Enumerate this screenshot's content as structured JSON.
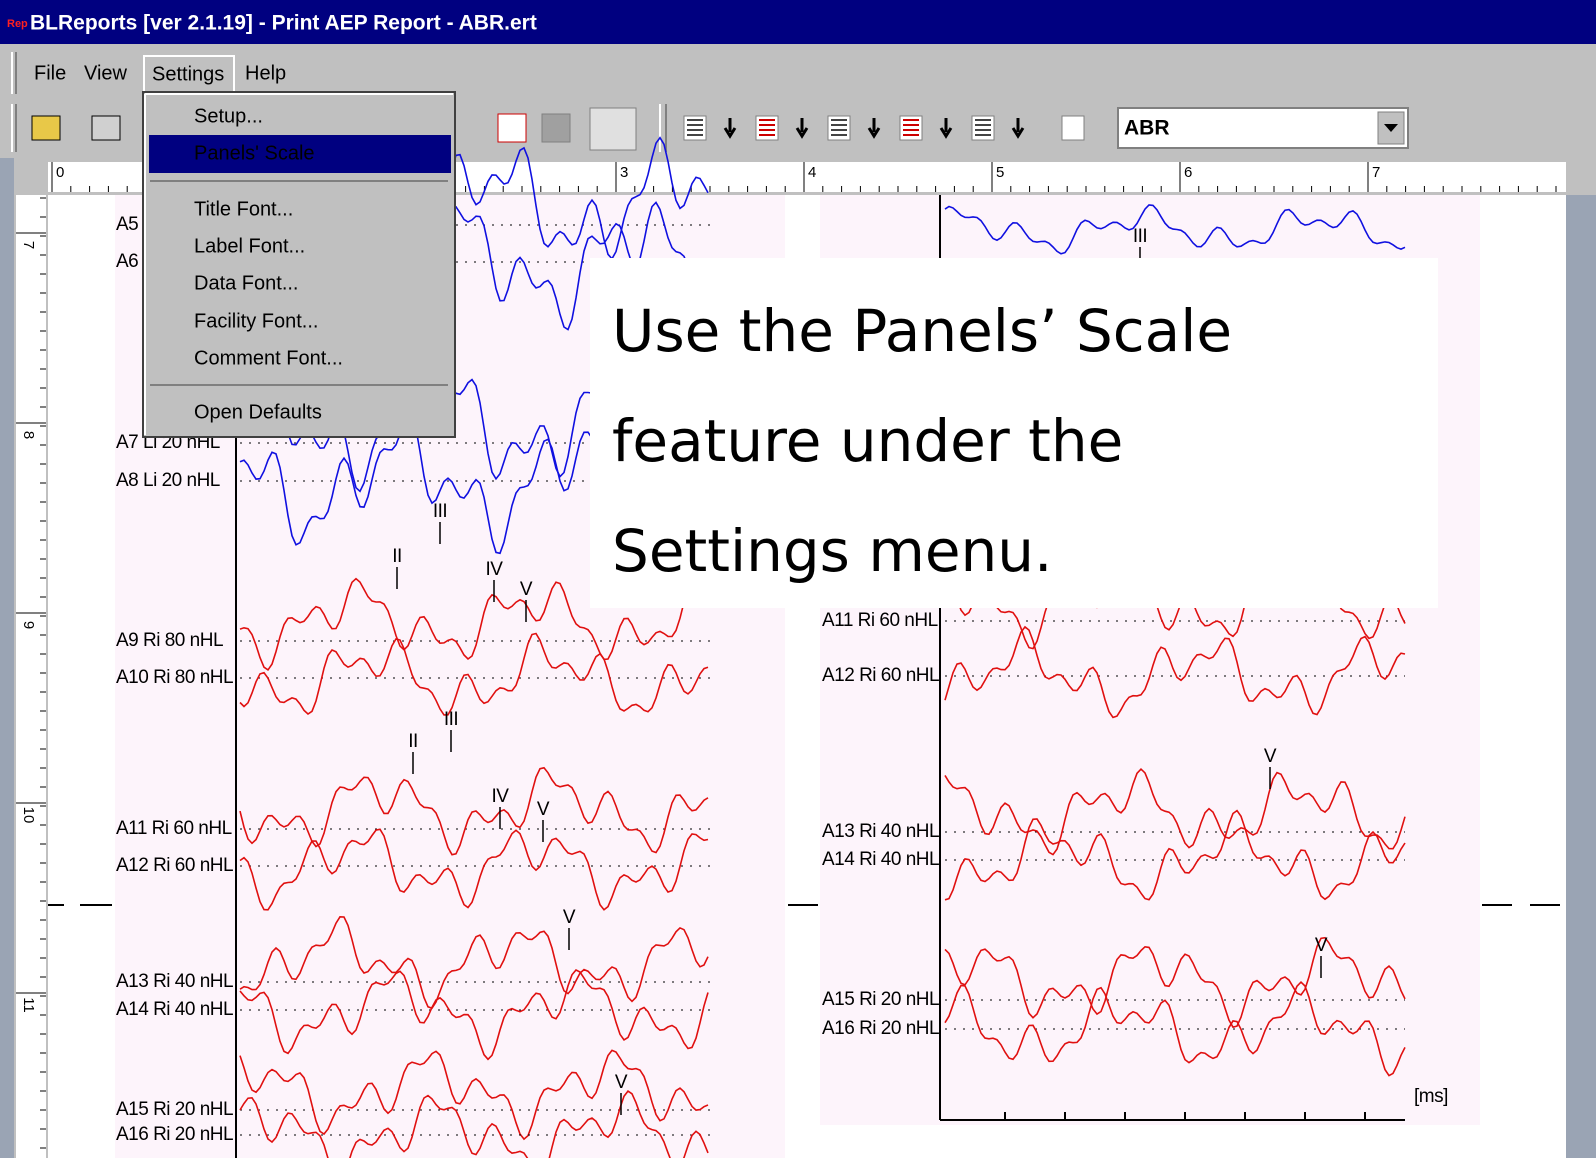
{
  "window_title": "BLReports [ver 2.1.19] - Print AEP Report - ABR.ert",
  "app_icon": "Rep",
  "menu": [
    "File",
    "View",
    "Settings",
    "Help"
  ],
  "settings_menu": {
    "items": [
      "Setup...",
      "Panels' Scale",
      "Title Font...",
      "Label Font...",
      "Data Font...",
      "Facility Font...",
      "Comment Font...",
      "Open Defaults"
    ],
    "selected_index": 1
  },
  "report_combo": "ABR",
  "ruler_x": [
    0,
    3,
    4,
    5,
    6,
    7
  ],
  "ruler_y": [
    7,
    8,
    9,
    10,
    11
  ],
  "left_panel": {
    "trace_labels": [
      "A5",
      "A6",
      "A7 Li 20 nHL",
      "A8 Li 20 nHL",
      "A9 Ri 80 nHL",
      "A10 Ri 80 nHL",
      "A11 Ri 60 nHL",
      "A12 Ri 60 nHL",
      "A13 Ri 40 nHL",
      "A14 Ri 40 nHL",
      "A15 Ri 20 nHL",
      "A16 Ri 20 nHL"
    ],
    "peak_labels": [
      "III",
      "II",
      "IV",
      "V",
      "II",
      "III",
      "IV",
      "V",
      "V",
      "V"
    ]
  },
  "right_panel": {
    "trace_labels": [
      "A11 Ri 60 nHL",
      "A12 Ri 60 nHL",
      "A13 Ri 40 nHL",
      "A14 Ri 40 nHL",
      "A15 Ri 20 nHL",
      "A16 Ri 20 nHL"
    ],
    "peak_labels": [
      "III",
      "V",
      "V"
    ],
    "x_unit": "[ms]"
  },
  "callout": [
    "Use the Panels’ Scale",
    "feature under the",
    "Settings menu."
  ]
}
